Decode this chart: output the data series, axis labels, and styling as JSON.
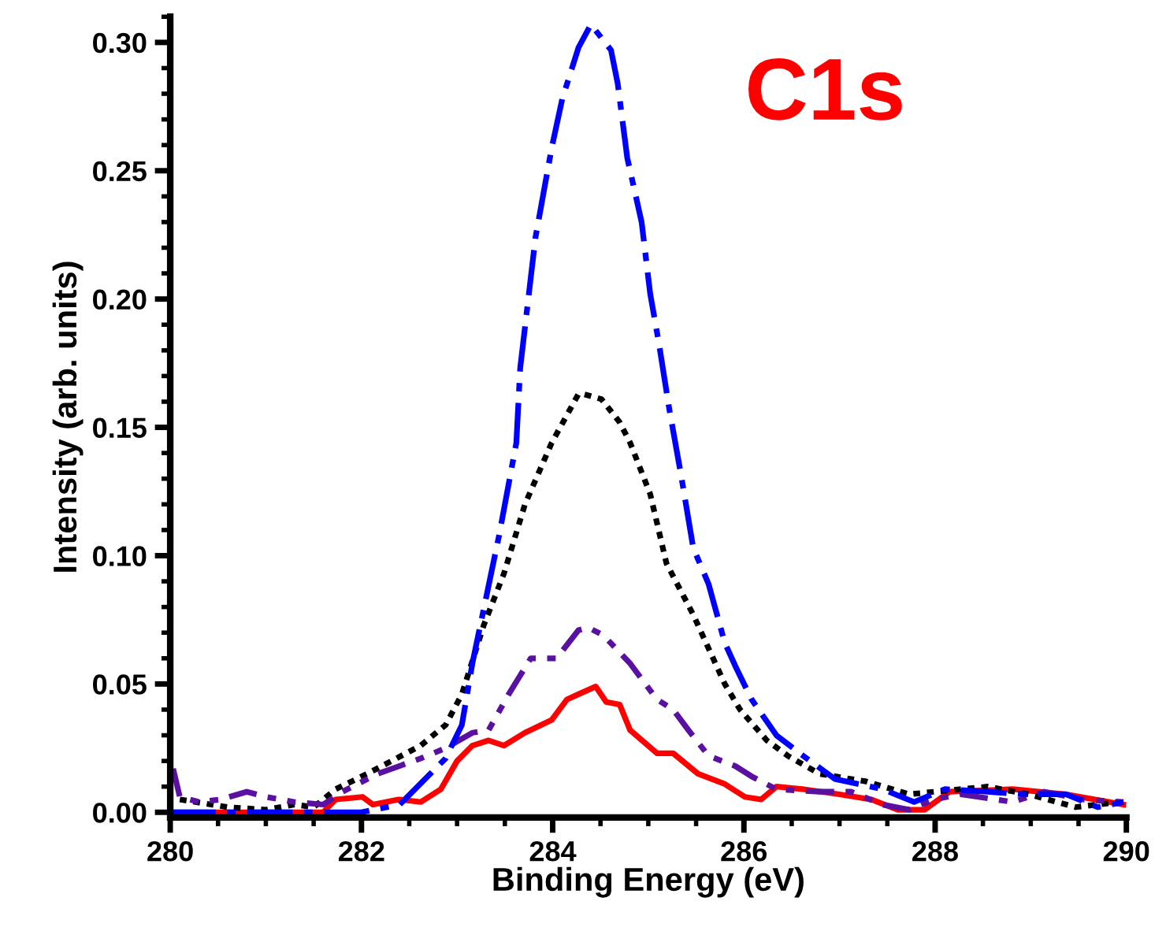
{
  "chart_data": {
    "type": "line",
    "xlabel": "Binding Energy (eV)",
    "ylabel": "Intensity (arb. units)",
    "annotations": [
      "C1s"
    ],
    "xlim": [
      280,
      290
    ],
    "xticks": [
      280,
      282,
      284,
      286,
      288,
      290
    ],
    "ylim": [
      -0.002,
      0.31
    ],
    "yticks": [
      {
        "value": 0,
        "label": "0.00"
      },
      0.05,
      {
        "value": 0.1,
        "label": "0.10"
      },
      0.15,
      {
        "value": 0.2,
        "label": "0.20"
      },
      0.25,
      {
        "value": 0.3,
        "label": "0.30"
      }
    ],
    "grid": false,
    "legend": false,
    "marker": "none",
    "series": [
      {
        "color": "#ff0000",
        "line_style": "solid",
        "x": [
          280,
          281.6,
          281.73,
          282.01,
          282.12,
          282.39,
          282.62,
          282.83,
          283.0,
          283.16,
          283.33,
          283.49,
          283.71,
          283.99,
          284.15,
          284.27,
          284.45,
          284.56,
          284.7,
          284.81,
          285.09,
          285.26,
          285.52,
          285.8,
          286.01,
          286.18,
          286.34,
          286.62,
          287.0,
          287.33,
          287.61,
          287.89,
          288.15,
          288.81,
          289.37,
          289.97
        ],
        "values": [
          0,
          0,
          0.005,
          0.006,
          0.003,
          0.005,
          0.004,
          0.009,
          0.02,
          0.026,
          0.028,
          0.026,
          0.031,
          0.036,
          0.044,
          0.046,
          0.049,
          0.043,
          0.042,
          0.032,
          0.023,
          0.023,
          0.015,
          0.011,
          0.006,
          0.005,
          0.01,
          0.009,
          0.007,
          0.005,
          0.001,
          0.001,
          0.008,
          0.009,
          0.007,
          0.003
        ]
      },
      {
        "color": "#000000",
        "line_style": "dotted",
        "x": [
          280.1,
          280.6,
          281.0,
          281.3,
          281.5,
          281.73,
          282.06,
          282.62,
          282.88,
          283.05,
          283.28,
          283.49,
          283.71,
          283.99,
          284.27,
          284.32,
          284.51,
          284.7,
          284.81,
          285.02,
          285.19,
          285.47,
          285.8,
          285.96,
          286.24,
          286.46,
          286.79,
          287.28,
          287.73,
          287.99,
          288.55,
          288.98,
          289.47,
          289.92
        ],
        "values": [
          0.005,
          0.002,
          0.001,
          0.003,
          0.002,
          0.009,
          0.015,
          0.026,
          0.034,
          0.046,
          0.073,
          0.093,
          0.12,
          0.144,
          0.163,
          0.163,
          0.161,
          0.152,
          0.144,
          0.124,
          0.097,
          0.077,
          0.05,
          0.04,
          0.028,
          0.022,
          0.015,
          0.012,
          0.007,
          0.008,
          0.01,
          0.007,
          0.002,
          0.004
        ]
      },
      {
        "color": "#5a10a0",
        "line_style": "dashdotdot",
        "x": [
          280.03,
          280.1,
          280.3,
          280.53,
          280.8,
          281.0,
          281.3,
          281.6,
          281.8,
          282.17,
          282.62,
          282.88,
          283.16,
          283.33,
          283.54,
          283.77,
          284.04,
          284.27,
          284.37,
          284.53,
          284.81,
          285.09,
          285.26,
          285.42,
          285.63,
          285.91,
          286.08,
          286.34,
          286.79,
          287.12,
          287.45,
          287.73,
          287.99,
          288.27,
          288.81,
          289.14,
          289.54,
          289.97
        ],
        "values": [
          0.017,
          0.006,
          0.004,
          0.005,
          0.008,
          0.006,
          0.004,
          0.003,
          0.008,
          0.015,
          0.021,
          0.025,
          0.031,
          0.032,
          0.046,
          0.06,
          0.06,
          0.071,
          0.072,
          0.069,
          0.058,
          0.044,
          0.04,
          0.032,
          0.022,
          0.018,
          0.014,
          0.009,
          0.008,
          0.008,
          0.003,
          0.001,
          0.005,
          0.007,
          0.004,
          0.008,
          0.005,
          0.004
        ]
      },
      {
        "color": "#0000ff",
        "line_style": "dashdot",
        "x": [
          280,
          282.0,
          282.4,
          282.88,
          283.05,
          283.16,
          283.44,
          283.62,
          283.66,
          283.82,
          283.99,
          284.1,
          284.27,
          284.4,
          284.61,
          284.68,
          284.78,
          284.93,
          285.02,
          285.11,
          285.22,
          285.34,
          285.47,
          285.63,
          285.8,
          285.91,
          286.08,
          286.34,
          286.62,
          286.95,
          287.45,
          287.78,
          288.1,
          288.55,
          288.93,
          289.37,
          289.7,
          289.97
        ],
        "values": [
          0,
          0,
          0.003,
          0.021,
          0.034,
          0.058,
          0.108,
          0.144,
          0.173,
          0.224,
          0.259,
          0.278,
          0.298,
          0.307,
          0.297,
          0.284,
          0.255,
          0.23,
          0.202,
          0.183,
          0.157,
          0.132,
          0.103,
          0.089,
          0.066,
          0.057,
          0.044,
          0.03,
          0.022,
          0.013,
          0.009,
          0.004,
          0.009,
          0.008,
          0.007,
          0.007,
          0.002,
          0.004
        ]
      }
    ]
  }
}
